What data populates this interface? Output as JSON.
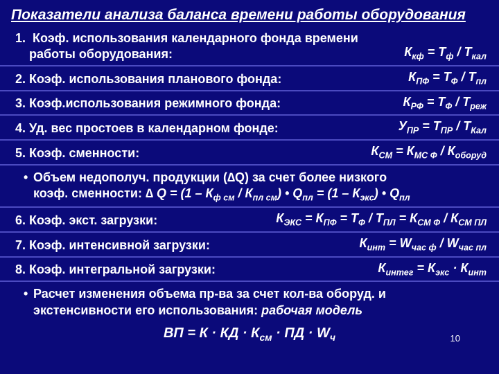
{
  "colors": {
    "background": "#0b0a7a",
    "separator": "#4b4ac0",
    "text": "#ffffff"
  },
  "title": "Показатели анализа баланса времени работы оборудования",
  "page_number": "10",
  "items": [
    {
      "n": "1.",
      "label_l1": "Коэф. использования календарного фонда времени",
      "label_l2": "работы оборудования:",
      "formula": "К<sub>кф</sub> = Т<sub>ф</sub> / Т<sub>кал</sub>"
    },
    {
      "n": "2.",
      "label": "Коэф. использования планового фонда:",
      "formula": "К<sub>ПФ</sub> =  Т<sub>Ф</sub> / Т<sub>пл</sub>"
    },
    {
      "n": "3.",
      "label": "Коэф.использования режимного фонда:",
      "formula": "К<sub>РФ</sub> = Т<sub>Ф</sub> / Т<sub>реж</sub>"
    },
    {
      "n": "4.",
      "label": "Уд. вес простоев в календарном фонде:",
      "formula": "У<sub>ПР</sub> = Т<sub>ПР</sub> / Т<sub>Кал</sub>"
    },
    {
      "n": "5.",
      "label": "Коэф. сменности:",
      "formula": "К<sub>СМ</sub> = К<sub>МС Ф</sub> / К<sub>оборуд</sub>"
    }
  ],
  "bullet1": {
    "line1": "Объем недополуч. продукции (∆Q) за счет более низкого",
    "line2_prefix": "коэф. сменности:  ",
    "line2_formula": "∆ Q = (1 – К<sub>ф см</sub> / К<sub>пл см</sub>) • Q<sub>пл</sub> = (1 – К<sub>экс</sub>) • Q<sub>пл</sub>"
  },
  "items2": [
    {
      "n": "6.",
      "label": "Коэф. экст. загрузки:",
      "formula": "К<sub>ЭКС</sub> = К<sub>ПФ</sub> = Т<sub>Ф</sub> / Т<sub>ПЛ</sub> = К<sub>СМ Ф</sub> / К<sub>СМ ПЛ</sub>"
    },
    {
      "n": "7.",
      "label": "Коэф. интенсивной загрузки:",
      "formula": "К<sub>инт</sub> = W<sub>час ф</sub> / W<sub>час пл</sub>"
    },
    {
      "n": "8.",
      "label": "Коэф. интегральной загрузки:",
      "formula": "К<sub>интег</sub> = К<sub>экс</sub> · К<sub>инт</sub>"
    }
  ],
  "bullet2": {
    "line1": "Расчет изменения объема пр-ва за счет кол-ва оборуд. и",
    "line2_prefix": "экстенсивности его использования:  ",
    "line2_em": "рабочая модель"
  },
  "final_formula": "ВП = К · КД · К<sub>см</sub> · ПД · W<sub>ч</sub>"
}
